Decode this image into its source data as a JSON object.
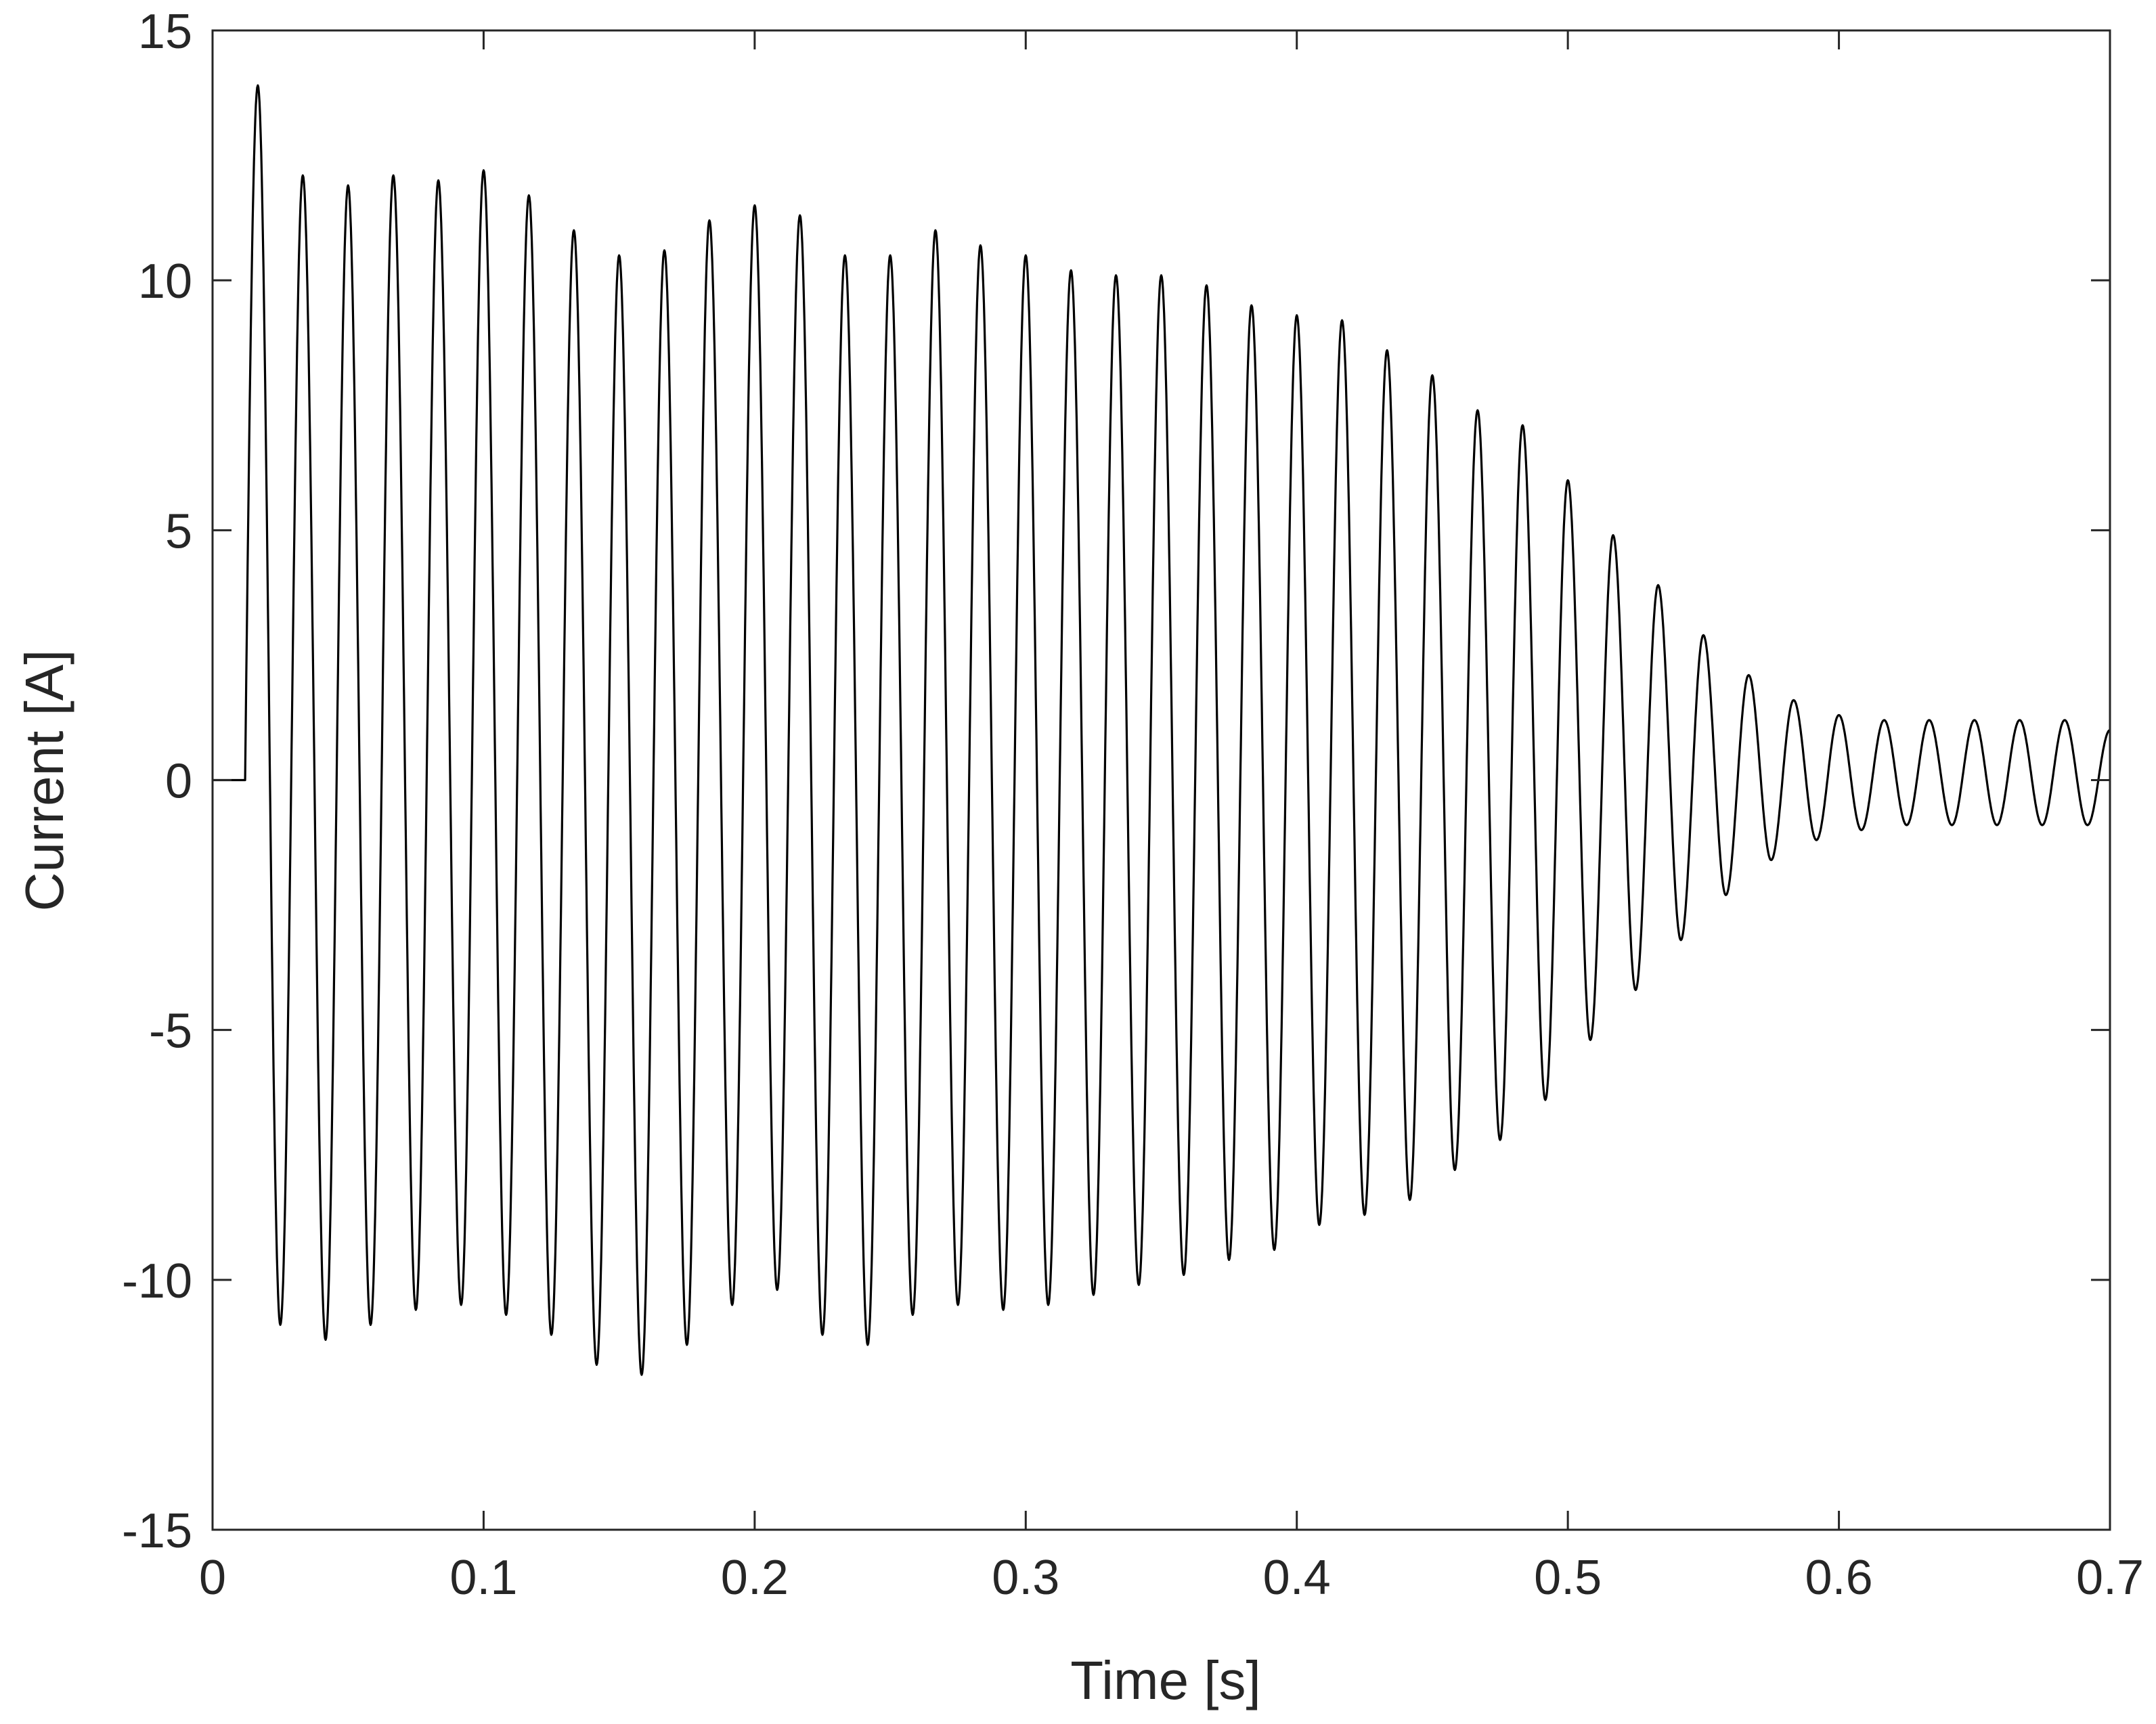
{
  "chart_data": {
    "type": "line",
    "title": "",
    "xlabel": "Time [s]",
    "ylabel": "Current [A]",
    "xlim": [
      0,
      0.7
    ],
    "ylim": [
      -15,
      15
    ],
    "x_ticks": [
      0,
      0.1,
      0.2,
      0.3,
      0.4,
      0.5,
      0.6,
      0.7
    ],
    "x_tick_labels": [
      "0",
      "0.1",
      "0.2",
      "0.3",
      "0.4",
      "0.5",
      "0.6",
      "0.7"
    ],
    "y_ticks": [
      -15,
      -10,
      -5,
      0,
      5,
      10,
      15
    ],
    "y_tick_labels": [
      "-15",
      "-10",
      "-5",
      "0",
      "5",
      "10",
      "15"
    ],
    "grid": false,
    "legend": "none",
    "line_color": "#000000",
    "series": [
      {
        "waveform": "sinusoid",
        "frequency_hz": 60,
        "onset_time_s": 0.012,
        "value_before_onset": 0,
        "positive_peaks": [
          [
            0.0167,
            13.9
          ],
          [
            0.0333,
            12.1
          ],
          [
            0.05,
            11.9
          ],
          [
            0.0667,
            12.1
          ],
          [
            0.0833,
            12.0
          ],
          [
            0.1,
            12.2
          ],
          [
            0.1167,
            11.7
          ],
          [
            0.1333,
            11.0
          ],
          [
            0.15,
            10.5
          ],
          [
            0.1667,
            10.6
          ],
          [
            0.1833,
            11.2
          ],
          [
            0.2,
            11.5
          ],
          [
            0.2167,
            11.3
          ],
          [
            0.2333,
            10.5
          ],
          [
            0.25,
            10.5
          ],
          [
            0.2667,
            11.0
          ],
          [
            0.2833,
            10.7
          ],
          [
            0.3,
            10.5
          ],
          [
            0.3167,
            10.2
          ],
          [
            0.3333,
            10.1
          ],
          [
            0.35,
            10.1
          ],
          [
            0.3667,
            9.9
          ],
          [
            0.3833,
            9.5
          ],
          [
            0.4,
            9.3
          ],
          [
            0.4167,
            9.2
          ],
          [
            0.4333,
            8.6
          ],
          [
            0.45,
            8.1
          ],
          [
            0.4667,
            7.4
          ],
          [
            0.4833,
            7.1
          ],
          [
            0.5,
            6.0
          ],
          [
            0.5167,
            4.9
          ],
          [
            0.5333,
            3.9
          ],
          [
            0.55,
            2.9
          ],
          [
            0.5667,
            2.1
          ],
          [
            0.5833,
            1.6
          ],
          [
            0.6,
            1.3
          ],
          [
            0.6167,
            1.2
          ],
          [
            0.6333,
            1.2
          ],
          [
            0.65,
            1.2
          ],
          [
            0.6667,
            1.2
          ],
          [
            0.6833,
            1.2
          ],
          [
            0.7,
            1.0
          ]
        ],
        "negative_peaks": [
          [
            0.025,
            -10.9
          ],
          [
            0.0417,
            -11.2
          ],
          [
            0.0583,
            -10.9
          ],
          [
            0.075,
            -10.6
          ],
          [
            0.0917,
            -10.5
          ],
          [
            0.1083,
            -10.7
          ],
          [
            0.125,
            -11.1
          ],
          [
            0.1417,
            -11.7
          ],
          [
            0.1583,
            -11.9
          ],
          [
            0.175,
            -11.3
          ],
          [
            0.1917,
            -10.5
          ],
          [
            0.2083,
            -10.2
          ],
          [
            0.225,
            -11.1
          ],
          [
            0.2417,
            -11.3
          ],
          [
            0.2583,
            -10.7
          ],
          [
            0.275,
            -10.5
          ],
          [
            0.2917,
            -10.6
          ],
          [
            0.3083,
            -10.5
          ],
          [
            0.325,
            -10.3
          ],
          [
            0.3417,
            -10.1
          ],
          [
            0.3583,
            -9.9
          ],
          [
            0.375,
            -9.6
          ],
          [
            0.3917,
            -9.4
          ],
          [
            0.4083,
            -8.9
          ],
          [
            0.425,
            -8.7
          ],
          [
            0.4417,
            -8.4
          ],
          [
            0.4583,
            -7.8
          ],
          [
            0.475,
            -7.2
          ],
          [
            0.4917,
            -6.4
          ],
          [
            0.5083,
            -5.2
          ],
          [
            0.525,
            -4.2
          ],
          [
            0.5417,
            -3.2
          ],
          [
            0.5583,
            -2.3
          ],
          [
            0.575,
            -1.6
          ],
          [
            0.5917,
            -1.2
          ],
          [
            0.6083,
            -1.0
          ],
          [
            0.625,
            -0.9
          ],
          [
            0.6417,
            -0.9
          ],
          [
            0.6583,
            -0.9
          ],
          [
            0.675,
            -0.9
          ],
          [
            0.6917,
            -0.9
          ]
        ]
      }
    ]
  }
}
